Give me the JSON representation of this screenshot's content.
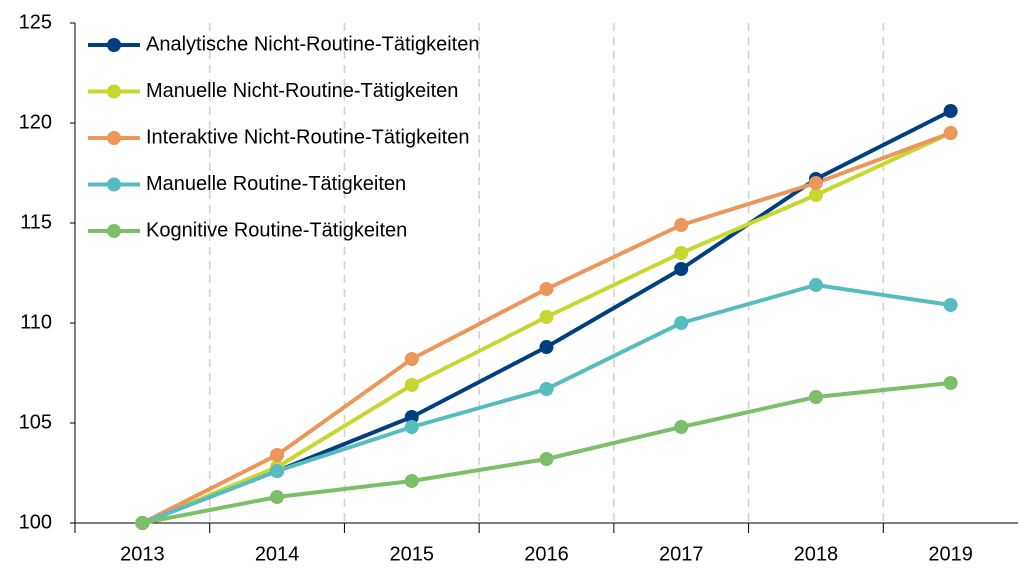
{
  "chart_data": {
    "type": "line",
    "categories": [
      "2013",
      "2014",
      "2015",
      "2016",
      "2017",
      "2018",
      "2019"
    ],
    "series": [
      {
        "name": "Analytische Nicht-Routine-Tätigkeiten",
        "color": "#003f7f",
        "values": [
          100,
          102.6,
          105.3,
          108.8,
          112.7,
          117.2,
          120.6
        ]
      },
      {
        "name": "Manuelle Nicht-Routine-Tätigkeiten",
        "color": "#c8d630",
        "values": [
          100,
          102.8,
          106.9,
          110.3,
          113.5,
          116.4,
          119.5
        ]
      },
      {
        "name": "Interaktive Nicht-Routine-Tätigkeiten",
        "color": "#ec965a",
        "values": [
          100,
          103.4,
          108.2,
          111.7,
          114.9,
          117.0,
          119.5
        ]
      },
      {
        "name": "Manuelle Routine-Tätigkeiten",
        "color": "#56bcc0",
        "values": [
          100,
          102.6,
          104.8,
          106.7,
          110.0,
          111.9,
          110.9
        ]
      },
      {
        "name": "Kognitive Routine-Tätigkeiten",
        "color": "#7dbe6a",
        "values": [
          100,
          101.3,
          102.1,
          103.2,
          104.8,
          106.3,
          107.0
        ]
      }
    ],
    "ylim": [
      100,
      125
    ],
    "yticks": [
      100,
      105,
      110,
      115,
      120,
      125
    ],
    "grid": true,
    "legend": "upper left"
  }
}
